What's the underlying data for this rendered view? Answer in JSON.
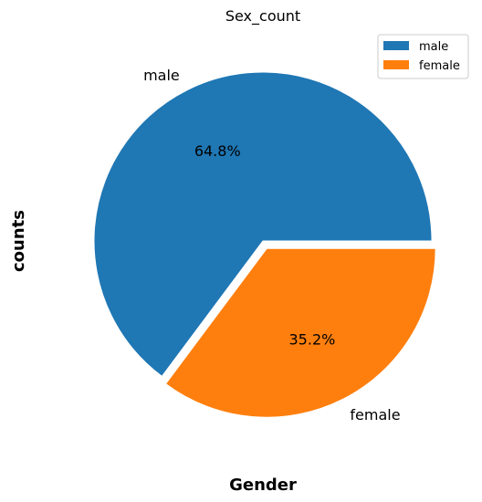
{
  "chart_data": {
    "type": "pie",
    "title": "Sex_count",
    "xlabel": "Gender",
    "ylabel": "counts",
    "slices": [
      {
        "label": "male",
        "percent": 64.8,
        "percent_label": "64.8%",
        "color": "#1f77b4",
        "exploded": false
      },
      {
        "label": "female",
        "percent": 35.2,
        "percent_label": "35.2%",
        "color": "#ff7f0e",
        "exploded": true
      }
    ],
    "start_angle": "0° (east)",
    "direction": "counterclockwise",
    "legend": {
      "placement": "top-right",
      "entries": [
        "male",
        "female"
      ]
    }
  }
}
